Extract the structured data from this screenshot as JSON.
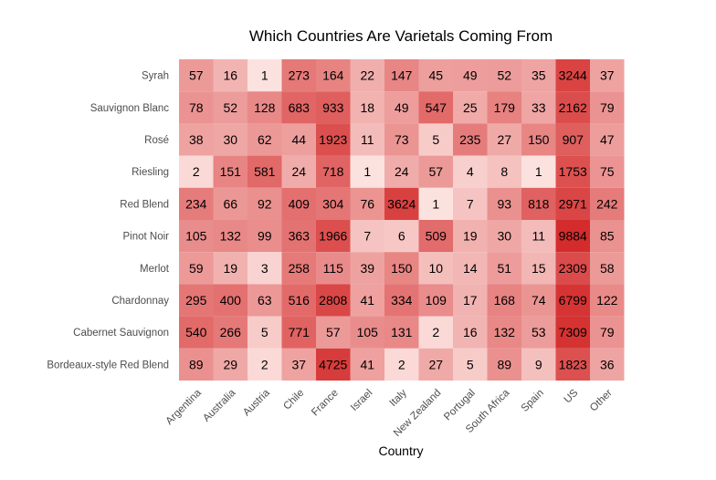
{
  "chart_data": {
    "type": "heatmap",
    "title": "Which Countries Are Varietals Coming From",
    "xlabel": "Country",
    "ylabel": "",
    "x_categories": [
      "Argentina",
      "Australia",
      "Austria",
      "Chile",
      "France",
      "Israel",
      "Italy",
      "New Zealand",
      "Portugal",
      "South Africa",
      "Spain",
      "US",
      "Other"
    ],
    "y_categories": [
      "Syrah",
      "Sauvignon Blanc",
      "Rosé",
      "Riesling",
      "Red Blend",
      "Pinot Noir",
      "Merlot",
      "Chardonnay",
      "Cabernet Sauvignon",
      "Bordeaux-style Red Blend"
    ],
    "values": [
      [
        57,
        16,
        1,
        273,
        164,
        22,
        147,
        45,
        49,
        52,
        35,
        3244,
        37
      ],
      [
        78,
        52,
        128,
        683,
        933,
        18,
        49,
        547,
        25,
        179,
        33,
        2162,
        79
      ],
      [
        38,
        30,
        62,
        44,
        1923,
        11,
        73,
        5,
        235,
        27,
        150,
        907,
        47
      ],
      [
        2,
        151,
        581,
        24,
        718,
        1,
        24,
        57,
        4,
        8,
        1,
        1753,
        75
      ],
      [
        234,
        66,
        92,
        409,
        304,
        76,
        3624,
        1,
        7,
        93,
        818,
        2971,
        242
      ],
      [
        105,
        132,
        99,
        363,
        1966,
        7,
        6,
        509,
        19,
        30,
        11,
        9884,
        85
      ],
      [
        59,
        19,
        3,
        258,
        115,
        39,
        150,
        10,
        14,
        51,
        15,
        2309,
        58
      ],
      [
        295,
        400,
        63,
        516,
        2808,
        41,
        334,
        109,
        17,
        168,
        74,
        6799,
        122
      ],
      [
        540,
        266,
        5,
        771,
        57,
        105,
        131,
        2,
        16,
        132,
        53,
        7309,
        79
      ],
      [
        89,
        29,
        2,
        37,
        4725,
        41,
        2,
        27,
        5,
        89,
        9,
        1823,
        36
      ]
    ],
    "color_low": "#fff1ee",
    "color_high": "#d42c2c",
    "scale": "log",
    "legend": "none",
    "grid": false
  }
}
